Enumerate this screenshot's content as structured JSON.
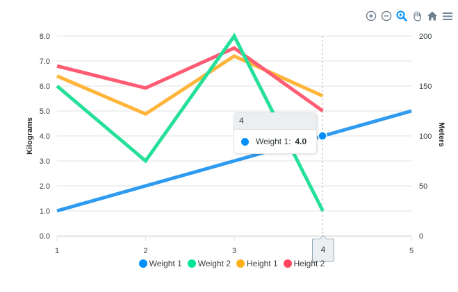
{
  "toolbar": {
    "icons": [
      "zoom-in-icon",
      "zoom-out-icon",
      "selection-zoom-icon",
      "pan-hand-icon",
      "reset-home-icon",
      "menu-icon"
    ],
    "active_color": "#008ffb",
    "inactive_color": "#6e8192"
  },
  "chart_data": {
    "type": "line",
    "title": "",
    "x": [
      1,
      2,
      3,
      4,
      5
    ],
    "xlabel": "",
    "ylabel": "Kilograms",
    "ylabel_right": "Meters",
    "ylim": [
      0,
      8
    ],
    "ylim_right": [
      0,
      200
    ],
    "yticks": [
      "0.0",
      "1.0",
      "2.0",
      "3.0",
      "4.0",
      "5.0",
      "6.0",
      "7.0",
      "8.0"
    ],
    "yticks_right": [
      "0",
      "50",
      "100",
      "150",
      "200"
    ],
    "xticks": [
      "1",
      "2",
      "3",
      "4",
      "5"
    ],
    "grid": true,
    "legend_position": "bottom",
    "series": [
      {
        "name": "Weight 1",
        "axis": "left",
        "color": "#2e9bf0",
        "values": [
          1,
          2,
          3,
          4,
          5
        ]
      },
      {
        "name": "Weight 2",
        "axis": "left",
        "color": "#26e09a",
        "values": [
          6,
          3,
          8,
          1
        ]
      },
      {
        "name": "Height 1",
        "axis": "right",
        "color": "#feb53a",
        "values": [
          160,
          122,
          180,
          140
        ]
      },
      {
        "name": "Height 2",
        "axis": "right",
        "color": "#ff5c74",
        "values": [
          170,
          148,
          188,
          125
        ]
      }
    ]
  },
  "tooltip": {
    "title": "4",
    "series_name": "Weight 1:",
    "value": "4.0",
    "dot_color": "#008ffb"
  },
  "xaxis_tooltip": "4",
  "legend": [
    {
      "label": "Weight 1",
      "color": "#008ffb"
    },
    {
      "label": "Weight 2",
      "color": "#00e396"
    },
    {
      "label": "Height 1",
      "color": "#feb019"
    },
    {
      "label": "Height 2",
      "color": "#ff4560"
    }
  ]
}
